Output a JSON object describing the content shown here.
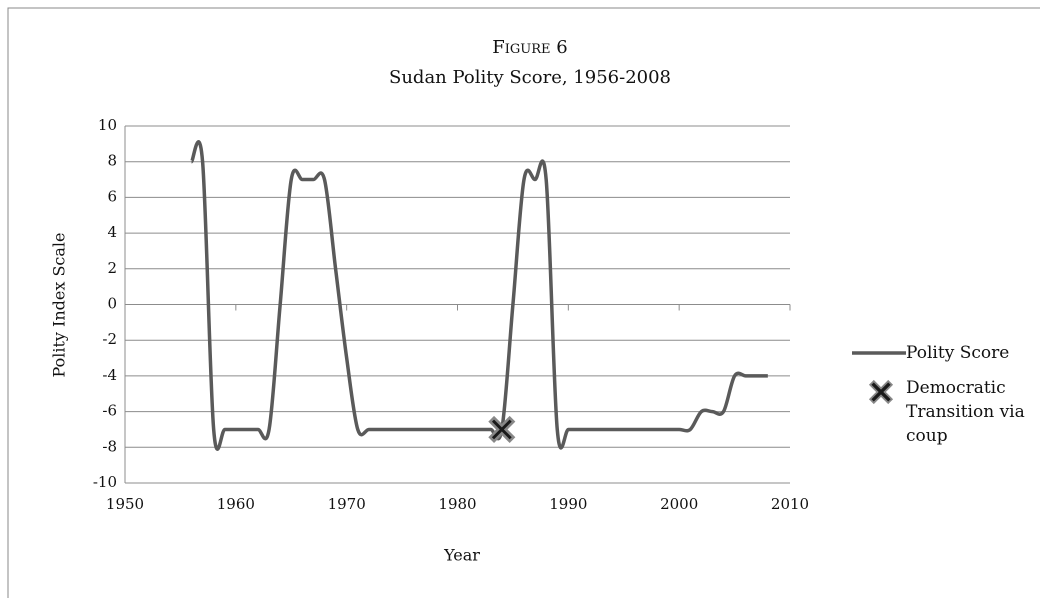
{
  "chart_data": {
    "type": "line",
    "title": "Figure 6",
    "subtitle": "Sudan Polity Score, 1956-2008",
    "x_label": "Year",
    "y_label": "Polity Index Scale",
    "xlim": [
      1950,
      2010
    ],
    "xticks": [
      1950,
      1960,
      1970,
      1980,
      1990,
      2000,
      2010
    ],
    "ylim": [
      -10,
      10
    ],
    "yticks": [
      -10,
      -8,
      -6,
      -4,
      -2,
      0,
      2,
      4,
      6,
      8,
      10
    ],
    "grid": true,
    "legend": "right",
    "series": [
      {
        "name": "Polity Score",
        "color": "#5a5a5a",
        "x": [
          1956,
          1957,
          1958,
          1959,
          1960,
          1961,
          1962,
          1963,
          1964,
          1965,
          1966,
          1967,
          1968,
          1969,
          1970,
          1971,
          1972,
          1973,
          1974,
          1975,
          1976,
          1977,
          1978,
          1979,
          1980,
          1981,
          1982,
          1983,
          1984,
          1985,
          1986,
          1987,
          1988,
          1989,
          1990,
          1991,
          1992,
          1993,
          1994,
          1995,
          1996,
          1997,
          1998,
          1999,
          2000,
          2001,
          2002,
          2003,
          2004,
          2005,
          2006,
          2007,
          2008
        ],
        "values": [
          8,
          8,
          -7,
          -7,
          -7,
          -7,
          -7,
          -7,
          0,
          7,
          7,
          7,
          7,
          2,
          -3,
          -7,
          -7,
          -7,
          -7,
          -7,
          -7,
          -7,
          -7,
          -7,
          -7,
          -7,
          -7,
          -7,
          -7,
          0,
          7,
          7,
          7,
          -7,
          -7,
          -7,
          -7,
          -7,
          -7,
          -7,
          -7,
          -7,
          -7,
          -7,
          -7,
          -7,
          -6,
          -6,
          -6,
          -4,
          -4,
          -4,
          -4
        ]
      },
      {
        "name": "Democratic Transition via coup",
        "color": "#1a1a1a",
        "marker": "x",
        "x": [
          1984
        ],
        "values": [
          -7
        ]
      }
    ]
  }
}
